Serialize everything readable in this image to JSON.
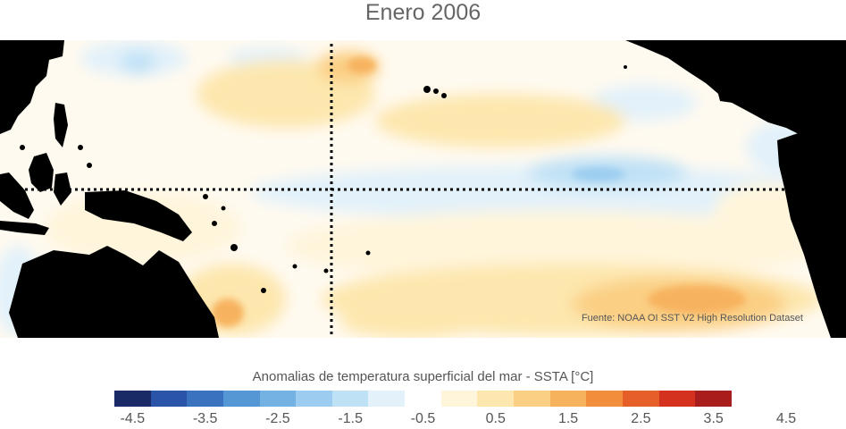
{
  "title": "Enero 2006",
  "credit": "Fuente: NOAA OI SST V2 High Resolution Dataset",
  "colorbar": {
    "label": "Anomalias de temperatura superficial del mar - SSTA  [°C]",
    "colors": [
      "#1a2a66",
      "#2a54a8",
      "#3a72c0",
      "#5596d4",
      "#75b2e4",
      "#9ccdf0",
      "#bfe1f6",
      "#e2f1fa",
      "#ffffff",
      "#fff5db",
      "#fde7ae",
      "#fbcf84",
      "#f7b25e",
      "#f28e3b",
      "#e65e28",
      "#d4311f",
      "#a91d1d"
    ],
    "ticks": [
      "-4.5",
      "-3.5",
      "-2.5",
      "-1.5",
      "-0.5",
      "0.5",
      "1.5",
      "2.5",
      "3.5",
      "4.5"
    ]
  },
  "map_colors": {
    "ocean_base": "#fffaf0",
    "land": "#000000",
    "cool_light": "#e2f1fa",
    "cool": "#bfe1f6",
    "cool_mid": "#9ccdf0",
    "warm_light": "#fff5db",
    "warm": "#fde7ae",
    "warm_mid": "#fbcf84",
    "warm_strong": "#f7b25e",
    "warm_hot": "#f28e3b"
  }
}
